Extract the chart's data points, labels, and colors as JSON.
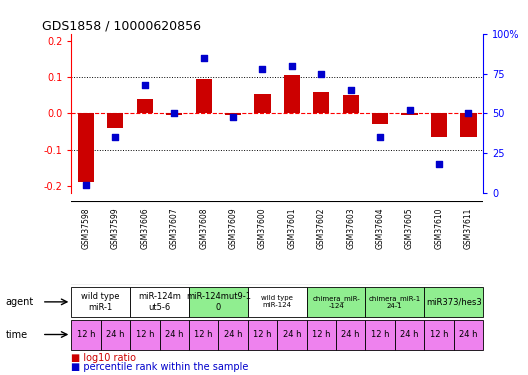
{
  "title": "GDS1858 / 10000620856",
  "samples": [
    "GSM37598",
    "GSM37599",
    "GSM37606",
    "GSM37607",
    "GSM37608",
    "GSM37609",
    "GSM37600",
    "GSM37601",
    "GSM37602",
    "GSM37603",
    "GSM37604",
    "GSM37605",
    "GSM37610",
    "GSM37611"
  ],
  "log10_ratio": [
    -0.19,
    -0.04,
    0.04,
    -0.005,
    0.095,
    -0.005,
    0.055,
    0.105,
    0.06,
    0.05,
    -0.03,
    -0.005,
    -0.065,
    -0.065
  ],
  "percentile_rank": [
    5,
    35,
    68,
    50,
    85,
    48,
    78,
    80,
    75,
    65,
    35,
    52,
    18,
    50
  ],
  "ylim": [
    -0.22,
    0.22
  ],
  "y2lim": [
    0,
    100
  ],
  "yticks": [
    -0.2,
    -0.1,
    0.0,
    0.1,
    0.2
  ],
  "y2ticks": [
    0,
    25,
    50,
    75,
    100
  ],
  "y2tick_labels": [
    "0",
    "25",
    "50",
    "75",
    "100%"
  ],
  "hlines_dotted": [
    -0.1,
    0.1
  ],
  "agent_groups": [
    {
      "label": "wild type\nmiR-1",
      "cols": [
        0,
        1
      ],
      "color": "#ffffff"
    },
    {
      "label": "miR-124m\nut5-6",
      "cols": [
        2,
        3
      ],
      "color": "#ffffff"
    },
    {
      "label": "miR-124mut9-1\n0",
      "cols": [
        4,
        5
      ],
      "color": "#90ee90"
    },
    {
      "label": "wild type\nmiR-124",
      "cols": [
        6,
        7
      ],
      "color": "#ffffff"
    },
    {
      "label": "chimera_miR-\n-124",
      "cols": [
        8,
        9
      ],
      "color": "#90ee90"
    },
    {
      "label": "chimera_miR-1\n24-1",
      "cols": [
        10,
        11
      ],
      "color": "#90ee90"
    },
    {
      "label": "miR373/hes3",
      "cols": [
        12,
        13
      ],
      "color": "#90ee90"
    }
  ],
  "time_labels": [
    "12 h",
    "24 h",
    "12 h",
    "24 h",
    "12 h",
    "24 h",
    "12 h",
    "24 h",
    "12 h",
    "24 h",
    "12 h",
    "24 h",
    "12 h",
    "24 h"
  ],
  "time_color": "#ee82ee",
  "bar_color": "#cc0000",
  "dot_color": "#0000cc",
  "legend_items": [
    "log10 ratio",
    "percentile rank within the sample"
  ],
  "legend_colors": [
    "#cc0000",
    "#0000cc"
  ],
  "background_color": "#ffffff",
  "sample_bg_color": "#cccccc"
}
